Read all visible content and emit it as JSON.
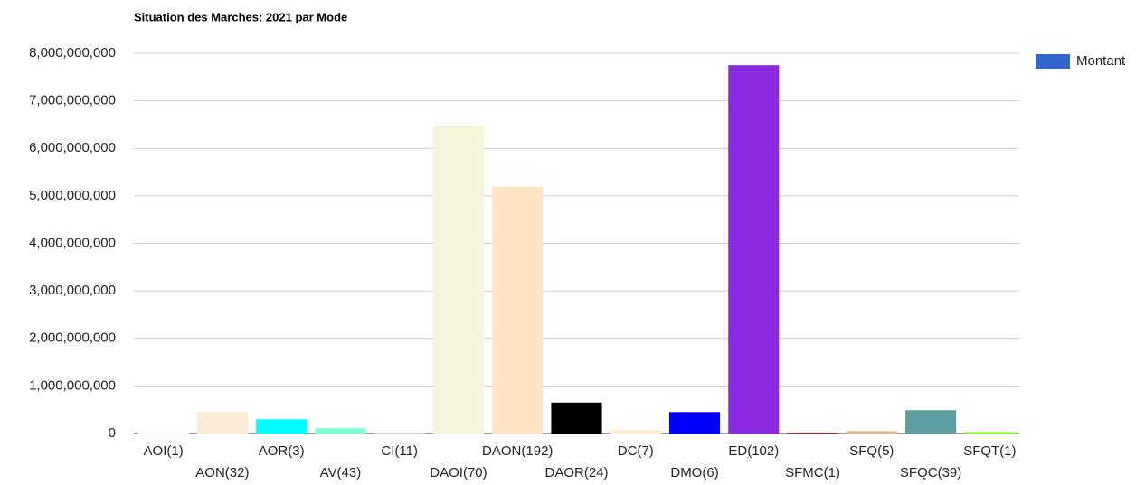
{
  "chart_data": {
    "type": "bar",
    "title": "Situation des Marches: 2021 par Mode",
    "categories": [
      "AOI(1)",
      "AON(32)",
      "AOR(3)",
      "AV(43)",
      "CI(11)",
      "DAOI(70)",
      "DAON(192)",
      "DAOR(24)",
      "DC(7)",
      "DMO(6)",
      "ED(102)",
      "SFMC(1)",
      "SFQ(5)",
      "SFQC(39)",
      "SFQT(1)"
    ],
    "series": [
      {
        "name": "Montant",
        "color": "#3366cc",
        "values": [
          10000000,
          450000000,
          300000000,
          110000000,
          5000000,
          6480000000,
          5190000000,
          650000000,
          70000000,
          450000000,
          7750000000,
          20000000,
          50000000,
          490000000,
          30000000
        ],
        "colors": [
          "#f0f8ff",
          "#faebd7",
          "#00ffff",
          "#7fffd4",
          "#f0ffff",
          "#f5f5dc",
          "#ffe4c4",
          "#000000",
          "#ffebcd",
          "#0000ff",
          "#8a2be2",
          "#a52a2a",
          "#deb887",
          "#5f9ea0",
          "#7fff00"
        ]
      }
    ],
    "ylim": [
      0,
      8000000000
    ],
    "yticks": [
      0,
      {
        "value": 1000000000,
        "label": "1,000,000,000"
      },
      {
        "value": 2000000000,
        "label": "2,000,000,000"
      },
      {
        "value": 3000000000,
        "label": "3,000,000,000"
      },
      {
        "value": 4000000000,
        "label": "4,000,000,000"
      },
      {
        "value": 5000000000,
        "label": "5,000,000,000"
      },
      {
        "value": 6000000000,
        "label": "6,000,000,000"
      },
      {
        "value": 7000000000,
        "label": "7,000,000,000"
      },
      {
        "value": 8000000000,
        "label": "8,000,000,000"
      }
    ],
    "grid": true,
    "legend": "right"
  }
}
